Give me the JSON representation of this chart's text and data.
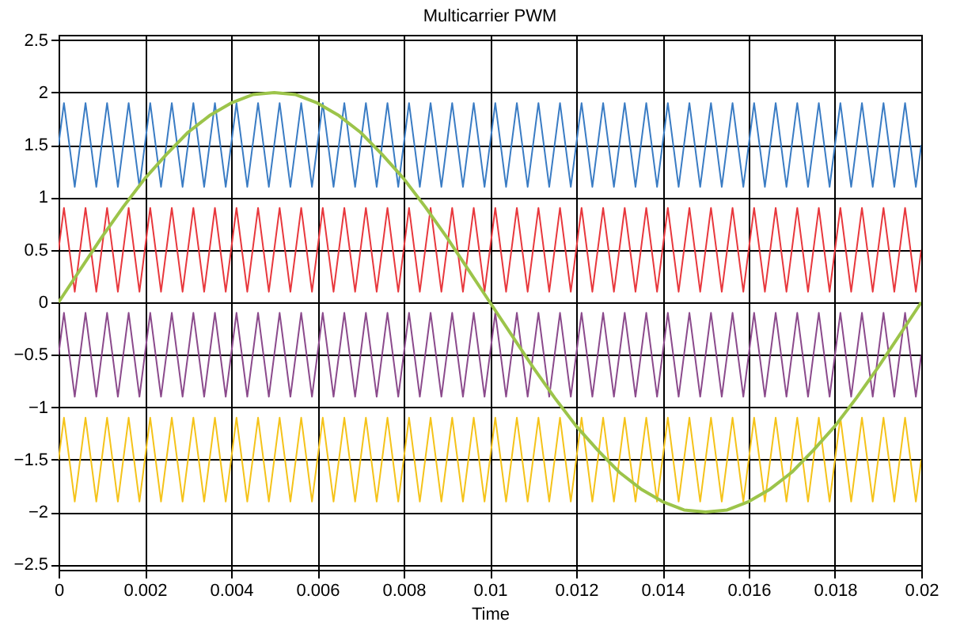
{
  "chart_data": {
    "type": "line",
    "title": "Multicarrier PWM",
    "xlabel": "Time",
    "x": [
      0,
      0.000125,
      0.000375,
      0.000625,
      0.000875,
      0.001125,
      0.001375,
      0.001625,
      0.001875,
      0.002125,
      0.002375,
      0.002625,
      0.002875,
      0.003125,
      0.003375,
      0.003625,
      0.003875,
      0.004125,
      0.004375,
      0.004625,
      0.004875,
      0.005125,
      0.005375,
      0.005625,
      0.005875,
      0.006125,
      0.006375,
      0.006625,
      0.006875,
      0.007125,
      0.007375,
      0.007625,
      0.007875,
      0.008125,
      0.008375,
      0.008625,
      0.008875,
      0.009125,
      0.009375,
      0.009625,
      0.009875,
      0.010125,
      0.010375,
      0.010625,
      0.010875,
      0.011125,
      0.011375,
      0.011625,
      0.011875,
      0.012125,
      0.012375,
      0.012625,
      0.012875,
      0.013125,
      0.013375,
      0.013625,
      0.013875,
      0.014125,
      0.014375,
      0.014625,
      0.014875,
      0.015125,
      0.015375,
      0.015625,
      0.015875,
      0.016125,
      0.016375,
      0.016625,
      0.016875,
      0.017125,
      0.017375,
      0.017625,
      0.017875,
      0.018125,
      0.018375,
      0.018625,
      0.018875,
      0.019125,
      0.019375,
      0.019625,
      0.019875,
      0.02
    ],
    "series": [
      {
        "color": "#3a7cc4",
        "values": [
          1.5,
          1.9,
          1.1,
          1.9,
          1.1,
          1.9,
          1.1,
          1.9,
          1.1,
          1.9,
          1.1,
          1.9,
          1.1,
          1.9,
          1.1,
          1.9,
          1.1,
          1.9,
          1.1,
          1.9,
          1.1,
          1.9,
          1.1,
          1.9,
          1.1,
          1.9,
          1.1,
          1.9,
          1.1,
          1.9,
          1.1,
          1.9,
          1.1,
          1.9,
          1.1,
          1.9,
          1.1,
          1.9,
          1.1,
          1.9,
          1.1,
          1.9,
          1.1,
          1.9,
          1.1,
          1.9,
          1.1,
          1.9,
          1.1,
          1.9,
          1.1,
          1.9,
          1.1,
          1.9,
          1.1,
          1.9,
          1.1,
          1.9,
          1.1,
          1.9,
          1.1,
          1.9,
          1.1,
          1.9,
          1.1,
          1.9,
          1.1,
          1.9,
          1.1,
          1.9,
          1.1,
          1.9,
          1.1,
          1.9,
          1.1,
          1.9,
          1.1,
          1.9,
          1.1,
          1.9,
          1.1,
          1.5
        ]
      },
      {
        "color": "#e8383d",
        "values": [
          0.5,
          0.9,
          0.1,
          0.9,
          0.1,
          0.9,
          0.1,
          0.9,
          0.1,
          0.9,
          0.1,
          0.9,
          0.1,
          0.9,
          0.1,
          0.9,
          0.1,
          0.9,
          0.1,
          0.9,
          0.1,
          0.9,
          0.1,
          0.9,
          0.1,
          0.9,
          0.1,
          0.9,
          0.1,
          0.9,
          0.1,
          0.9,
          0.1,
          0.9,
          0.1,
          0.9,
          0.1,
          0.9,
          0.1,
          0.9,
          0.1,
          0.9,
          0.1,
          0.9,
          0.1,
          0.9,
          0.1,
          0.9,
          0.1,
          0.9,
          0.1,
          0.9,
          0.1,
          0.9,
          0.1,
          0.9,
          0.1,
          0.9,
          0.1,
          0.9,
          0.1,
          0.9,
          0.1,
          0.9,
          0.1,
          0.9,
          0.1,
          0.9,
          0.1,
          0.9,
          0.1,
          0.9,
          0.1,
          0.9,
          0.1,
          0.9,
          0.1,
          0.9,
          0.1,
          0.9,
          0.1,
          0.5
        ]
      },
      {
        "color": "#8b4a8c",
        "values": [
          -0.5,
          -0.1,
          -0.9,
          -0.1,
          -0.9,
          -0.1,
          -0.9,
          -0.1,
          -0.9,
          -0.1,
          -0.9,
          -0.1,
          -0.9,
          -0.1,
          -0.9,
          -0.1,
          -0.9,
          -0.1,
          -0.9,
          -0.1,
          -0.9,
          -0.1,
          -0.9,
          -0.1,
          -0.9,
          -0.1,
          -0.9,
          -0.1,
          -0.9,
          -0.1,
          -0.9,
          -0.1,
          -0.9,
          -0.1,
          -0.9,
          -0.1,
          -0.9,
          -0.1,
          -0.9,
          -0.1,
          -0.9,
          -0.1,
          -0.9,
          -0.1,
          -0.9,
          -0.1,
          -0.9,
          -0.1,
          -0.9,
          -0.1,
          -0.9,
          -0.1,
          -0.9,
          -0.1,
          -0.9,
          -0.1,
          -0.9,
          -0.1,
          -0.9,
          -0.1,
          -0.9,
          -0.1,
          -0.9,
          -0.1,
          -0.9,
          -0.1,
          -0.9,
          -0.1,
          -0.9,
          -0.1,
          -0.9,
          -0.1,
          -0.9,
          -0.1,
          -0.9,
          -0.1,
          -0.9,
          -0.1,
          -0.9,
          -0.1,
          -0.9,
          -0.5
        ]
      },
      {
        "color": "#f5c31a",
        "values": [
          -1.5,
          -1.1,
          -1.9,
          -1.1,
          -1.9,
          -1.1,
          -1.9,
          -1.1,
          -1.9,
          -1.1,
          -1.9,
          -1.1,
          -1.9,
          -1.1,
          -1.9,
          -1.1,
          -1.9,
          -1.1,
          -1.9,
          -1.1,
          -1.9,
          -1.1,
          -1.9,
          -1.1,
          -1.9,
          -1.1,
          -1.9,
          -1.1,
          -1.9,
          -1.1,
          -1.9,
          -1.1,
          -1.9,
          -1.1,
          -1.9,
          -1.1,
          -1.9,
          -1.1,
          -1.9,
          -1.1,
          -1.9,
          -1.1,
          -1.9,
          -1.1,
          -1.9,
          -1.1,
          -1.9,
          -1.1,
          -1.9,
          -1.1,
          -1.9,
          -1.1,
          -1.9,
          -1.1,
          -1.9,
          -1.1,
          -1.9,
          -1.1,
          -1.9,
          -1.1,
          -1.9,
          -1.1,
          -1.9,
          -1.1,
          -1.9,
          -1.1,
          -1.9,
          -1.1,
          -1.9,
          -1.1,
          -1.9,
          -1.1,
          -1.9,
          -1.1,
          -1.9,
          -1.1,
          -1.9,
          -1.1,
          -1.9,
          -1.1,
          -1.9,
          -1.5
        ]
      },
      {
        "color": "#9cc44a",
        "x": [
          0,
          0.0005,
          0.001,
          0.0015,
          0.002,
          0.0025,
          0.003,
          0.0035,
          0.004,
          0.0045,
          0.005,
          0.0055,
          0.006,
          0.0065,
          0.007,
          0.0075,
          0.008,
          0.0085,
          0.009,
          0.0095,
          0.01,
          0.0105,
          0.011,
          0.0115,
          0.012,
          0.0125,
          0.013,
          0.0135,
          0.014,
          0.0145,
          0.015,
          0.0155,
          0.016,
          0.0165,
          0.017,
          0.0175,
          0.018,
          0.0185,
          0.019,
          0.0195,
          0.02
        ],
        "values": [
          0,
          0.31,
          0.62,
          0.91,
          1.18,
          1.41,
          1.62,
          1.78,
          1.9,
          1.98,
          2,
          1.98,
          1.9,
          1.78,
          1.62,
          1.41,
          1.18,
          0.91,
          0.62,
          0.31,
          0,
          -0.31,
          -0.62,
          -0.91,
          -1.18,
          -1.41,
          -1.62,
          -1.78,
          -1.9,
          -1.98,
          -2,
          -1.98,
          -1.9,
          -1.78,
          -1.62,
          -1.41,
          -1.18,
          -0.91,
          -0.62,
          -0.31,
          0
        ]
      }
    ],
    "xlim": [
      0,
      0.02
    ],
    "xticks": [
      0,
      0.002,
      0.004,
      0.006,
      0.008,
      0.01,
      0.012,
      0.014,
      0.016,
      0.018,
      0.02
    ],
    "ylim": [
      -2.55,
      2.55
    ],
    "yticks": [
      -2.5,
      -2,
      -1.5,
      -1,
      -0.5,
      0,
      0.5,
      1,
      1.5,
      2,
      2.5
    ],
    "grid": true
  }
}
